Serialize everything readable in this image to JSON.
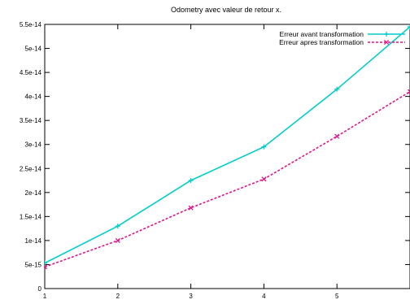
{
  "chart_data": {
    "type": "line",
    "title": "Odometry avec valeur de retour x.",
    "xlabel": "",
    "ylabel": "",
    "x": [
      1,
      2,
      3,
      4,
      5,
      6
    ],
    "xlim": [
      1,
      6
    ],
    "ylim": [
      0,
      5.5e-14
    ],
    "x_tick_labels": [
      "1",
      "2",
      "3",
      "4",
      "5"
    ],
    "y_tick_values": [
      0,
      5e-15,
      1e-14,
      1.5e-14,
      2e-14,
      2.5e-14,
      3e-14,
      3.5e-14,
      4e-14,
      4.5e-14,
      5e-14,
      5.5e-14
    ],
    "y_tick_labels": [
      "0",
      "5e-15",
      "1e-14",
      "1.5e-14",
      "2e-14",
      "2.5e-14",
      "3e-14",
      "3.5e-14",
      "4e-14",
      "4.5e-14",
      "5e-14",
      "5.5e-14"
    ],
    "grid": false,
    "legend_position": "top-right",
    "series": [
      {
        "name": "Erreur avant transformation",
        "values": [
          5.3e-15,
          1.3e-14,
          2.25e-14,
          2.95e-14,
          4.15e-14,
          5.45e-14
        ],
        "color": "#00cccc",
        "line_style": "solid",
        "marker": "plus"
      },
      {
        "name": "Erreur apres transformation",
        "values": [
          4.5e-15,
          1e-14,
          1.68e-14,
          2.28e-14,
          3.17e-14,
          4.1e-14
        ],
        "color": "#e0148c",
        "line_style": "dashed",
        "marker": "cross"
      }
    ]
  }
}
